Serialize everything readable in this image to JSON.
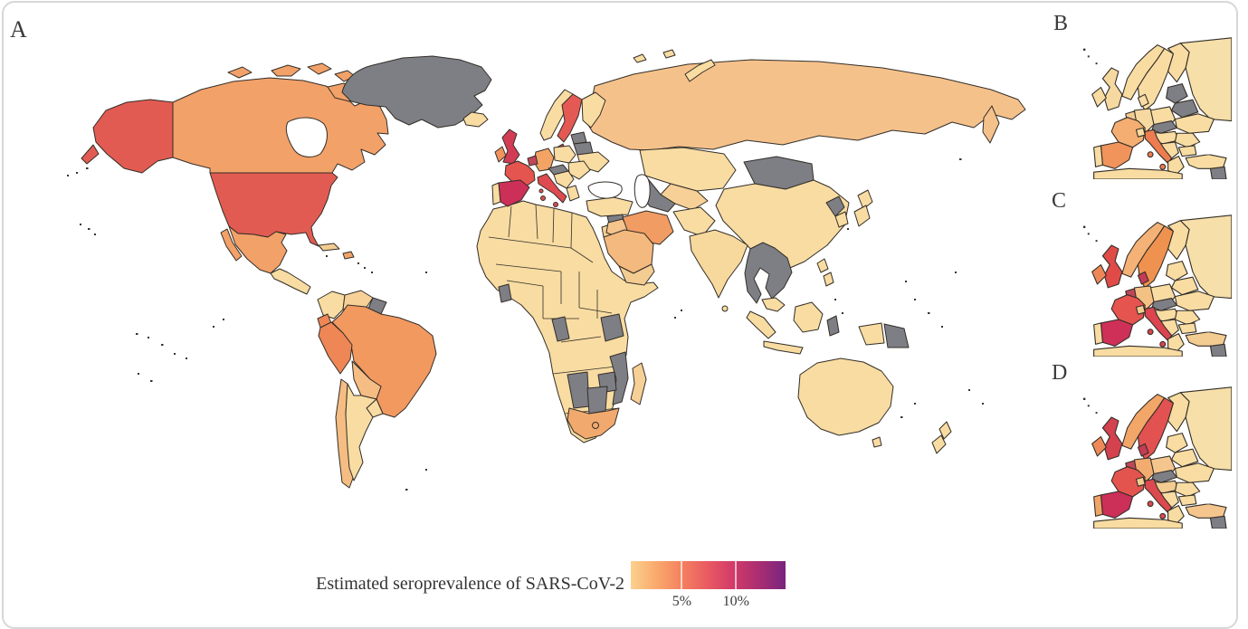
{
  "figure": {
    "type": "choropleth-world-map",
    "subject": "SARS-CoV-2 seroprevalence estimates by country"
  },
  "panels": {
    "a_label": "A",
    "b_label": "B",
    "c_label": "C",
    "d_label": "D"
  },
  "legend": {
    "title": "Estimated seroprevalence of SARS-CoV-2",
    "ticks": [
      {
        "label": "5%",
        "pos": 0.33
      },
      {
        "label": "10%",
        "pos": 0.68
      }
    ],
    "gradient": [
      "#FBD18E",
      "#F9A96C",
      "#F4805F",
      "#E95962",
      "#D13A68",
      "#A82D72",
      "#78257F"
    ]
  },
  "colors": {
    "no_data_gray": "#7E7E85",
    "stroke": "#332E28",
    "card_border": "#D7D7D7",
    "water": "#FFFFFF"
  },
  "map_fills": {
    "panel_a": {
      "greenland": "#7E7E85",
      "alaska": "#E25B52",
      "canada": "#F2A169",
      "usa": "#E25B52",
      "mexico": "#F2A169",
      "central_america": "#F8DCA2",
      "cuba": "#F3CC92",
      "hispaniola": "#F0A468",
      "colombia": "#F8DCA2",
      "venezuela": "#F6D096",
      "guyanas": "#7E7E85",
      "ecuador": "#EE8656",
      "peru": "#EE8656",
      "brazil": "#F29960",
      "bolivia": "#F5BD83",
      "paraguay": "#F8DCA2",
      "chile": "#F5BD83",
      "argentina": "#F8DCA2",
      "iceland": "#F8DCA2",
      "uk": "#D23C55",
      "ireland": "#F0935E",
      "portugal": "#F8DCA2",
      "spain": "#CC2F58",
      "france": "#E45550",
      "germany": "#F3A465",
      "benelux": "#BE4758",
      "denmark": "#C43B55",
      "norway": "#F8DCA2",
      "sweden": "#E45954",
      "finland": "#F8DCA2",
      "poland": "#F8DCA2",
      "baltics": "#7E7E85",
      "belarus": "#7E7E85",
      "ukraine": "#F8DCA2",
      "czech_slovakia": "#7E7E85",
      "balkans": "#F8DCA2",
      "italy": "#DD4B50",
      "greece": "#F8DCA2",
      "romania_bulgaria": "#F8DCA2",
      "turkey": "#F8DCA2",
      "syria": "#7E7E85",
      "russia": "#F5C18B",
      "novaya": "#F8DCA2",
      "svalbard": "#F8DCA2",
      "kazakhstan": "#F8DCA2",
      "central_asia": "#F6D096",
      "turkmenistan": "#7E7E85",
      "mongolia": "#7E7E85",
      "china": "#F8DCA2",
      "north_korea": "#7E7E85",
      "south_korea": "#F8DCA2",
      "japan": "#F8DCA2",
      "afghanistan_pakistan": "#F8DCA2",
      "india": "#F7D89D",
      "sri_lanka": "#F8DCA2",
      "indochina": "#7E7E85",
      "malaysia": "#F8DCA2",
      "sumatra": "#F8DCA2",
      "java": "#F8DCA2",
      "borneo": "#F8DCA2",
      "sulawesi": "#7E7E85",
      "philippines": "#F8DCA2",
      "west_papua": "#F8DCA2",
      "png": "#7E7E85",
      "australia": "#F8DCA2",
      "tasmania": "#F8DCA2",
      "new_zealand": "#F8DCA2",
      "africa_base": "#F8DCA2",
      "ghana": "#7E7E85",
      "gabon_congo": "#7E7E85",
      "tanzania": "#7E7E85",
      "mozambique": "#7E7E85",
      "zimbabwe": "#7E7E85",
      "namibia": "#7E7E85",
      "botswana": "#7E7E85",
      "south_africa": "#F2A96E",
      "madagascar": "#F6D096",
      "saudi": "#F4B97E",
      "iraq": "#F5C58D",
      "iran": "#F19C63",
      "yemen_oman": "#F3CC92",
      "jordan": "#F6D096"
    },
    "panel_b": {
      "norway": "#F8DCA2",
      "sweden": "#F8DCA2",
      "finland": "#F8DCA2",
      "russia": "#F6DFA8",
      "baltics": "#7E7E85",
      "belarus": "#7E7E85",
      "poland": "#F8DCA2",
      "germany": "#F6D9A0",
      "denmark": "#F8DCA2",
      "benelux": "#F3CC92",
      "uk": "#F6D9A0",
      "ireland": "#F8DCA2",
      "france": "#F5AE72",
      "spain": "#F0945C",
      "portugal": "#F8DCA2",
      "italy": "#ED7C50",
      "switzerland": "#F8DCA2",
      "czech_slovakia": "#7E7E85",
      "austria_hungary": "#F8DCA2",
      "ukraine": "#F8DCA2",
      "romania": "#F8DCA2",
      "balkans": "#F8DCA2",
      "bulgaria": "#F8DCA2",
      "greece": "#F8DCA2",
      "turkey": "#F8DCA2",
      "syria": "#7E7E85",
      "north_africa": "#F8DCA2"
    },
    "panel_c": {
      "norway": "#F5B276",
      "sweden": "#F0924F",
      "finland": "#F8DCA2",
      "russia": "#F6DFA8",
      "baltics": "#F8DCA2",
      "belarus": "#F8DCA2",
      "poland": "#F8DCA2",
      "germany": "#F4C184",
      "denmark": "#C43B55",
      "benelux": "#BE4758",
      "uk": "#E04B48",
      "ireland": "#EE8757",
      "france": "#E5544E",
      "spain": "#CE3058",
      "portugal": "#F8DCA2",
      "italy": "#DC4550",
      "switzerland": "#F3CC92",
      "czech_slovakia": "#7E7E85",
      "austria_hungary": "#F8DCA2",
      "ukraine": "#F8DCA2",
      "romania": "#F8DCA2",
      "balkans": "#F8DCA2",
      "bulgaria": "#F8DCA2",
      "greece": "#F8DCA2",
      "turkey": "#F3CC92",
      "syria": "#7E7E85",
      "north_africa": "#F8DCA2"
    },
    "panel_d": {
      "norway": "#F2A668",
      "sweden": "#E25251",
      "finland": "#F8DCA2",
      "russia": "#F6DFA8",
      "baltics": "#F8DCA2",
      "belarus": "#F8DCA2",
      "poland": "#F4C68E",
      "germany": "#F2AC70",
      "denmark": "#C43B55",
      "benelux": "#BE4758",
      "uk": "#D4414F",
      "ireland": "#EE8A57",
      "france": "#E4544E",
      "spain": "#CC2F58",
      "portugal": "#F0A468",
      "italy": "#DC4A50",
      "switzerland": "#F3CC92",
      "czech_slovakia": "#7E7E85",
      "austria_hungary": "#F3CC92",
      "ukraine": "#F8DCA2",
      "romania": "#F8DCA2",
      "balkans": "#F8DCA2",
      "bulgaria": "#F8DCA2",
      "greece": "#F8DCA2",
      "turkey": "#F4C68E",
      "syria": "#7E7E85",
      "north_africa": "#F8DCA2"
    }
  }
}
